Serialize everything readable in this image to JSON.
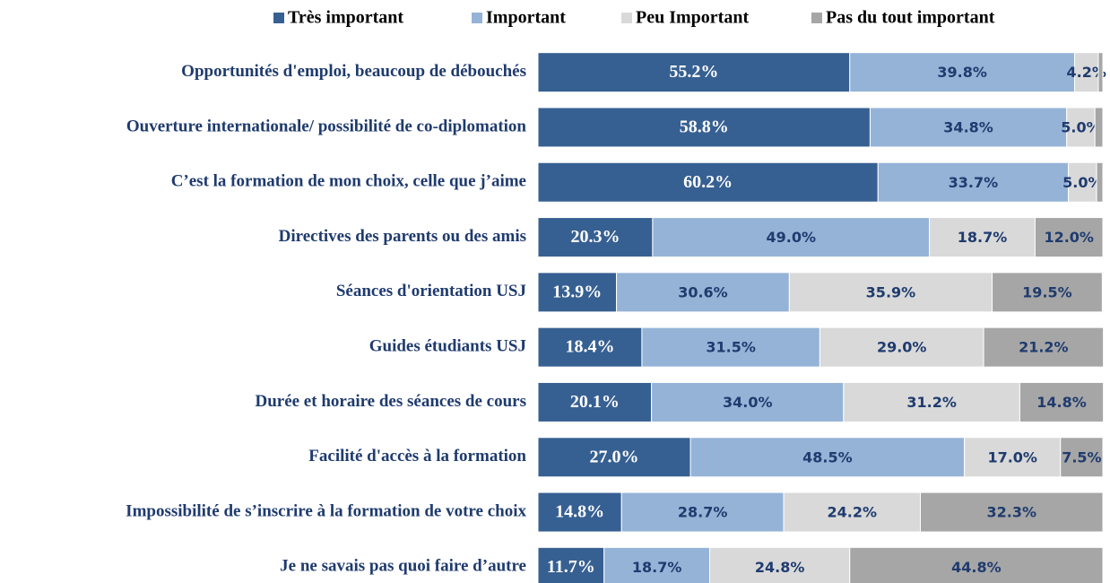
{
  "chart_data": {
    "type": "stacked-barh",
    "categories": [
      "Opportunités d'emploi, beaucoup de débouchés",
      "Ouverture internationale/ possibilité de co-diplomation",
      "C’est la formation de mon choix, celle que j’aime",
      "Directives des parents ou des amis",
      "Séances d'orientation  USJ",
      "Guides étudiants USJ",
      "Durée et horaire des séances de cours",
      "Facilité d'accès à la formation",
      "Impossibilité de s’inscrire à la formation de votre choix",
      "Je ne savais pas quoi faire d’autre"
    ],
    "series": [
      {
        "name": "Très important",
        "color": "#376092",
        "values": [
          55.2,
          58.8,
          60.2,
          20.3,
          13.9,
          18.4,
          20.1,
          27.0,
          14.8,
          11.7
        ],
        "value_labels": [
          "55.2%",
          "58.8%",
          "60.2%",
          "20.3%",
          "13.9%",
          "18.4%",
          "20.1%",
          "27.0%",
          "14.8%",
          "11.7%"
        ]
      },
      {
        "name": "Important",
        "color": "#95b3d7",
        "values": [
          39.8,
          34.8,
          33.7,
          49.0,
          30.6,
          31.5,
          34.0,
          48.5,
          28.7,
          18.7
        ],
        "value_labels": [
          "39.8%",
          "34.8%",
          "33.7%",
          "49.0%",
          "30.6%",
          "31.5%",
          "34.0%",
          "48.5%",
          "28.7%",
          "18.7%"
        ]
      },
      {
        "name": "Peu Important",
        "color": "#d9d9d9",
        "values": [
          4.2,
          5.0,
          5.0,
          18.7,
          35.9,
          29.0,
          31.2,
          17.0,
          24.2,
          24.8
        ],
        "value_labels": [
          "4.2%",
          "5.0%",
          "5.0%",
          "18.7%",
          "35.9%",
          "29.0%",
          "31.2%",
          "17.0%",
          "24.2%",
          "24.8%"
        ]
      },
      {
        "name": "Pas du tout important",
        "color": "#a6a6a6",
        "values": [
          0.8,
          1.4,
          1.1,
          12.0,
          19.5,
          21.2,
          14.8,
          7.5,
          32.3,
          44.8
        ],
        "value_labels": [
          null,
          null,
          null,
          "12.0%",
          "19.5%",
          "21.2%",
          "14.8%",
          "7.5%",
          "32.3%",
          "44.8%"
        ]
      }
    ],
    "xlim": [
      0,
      100
    ],
    "legend": "top"
  }
}
